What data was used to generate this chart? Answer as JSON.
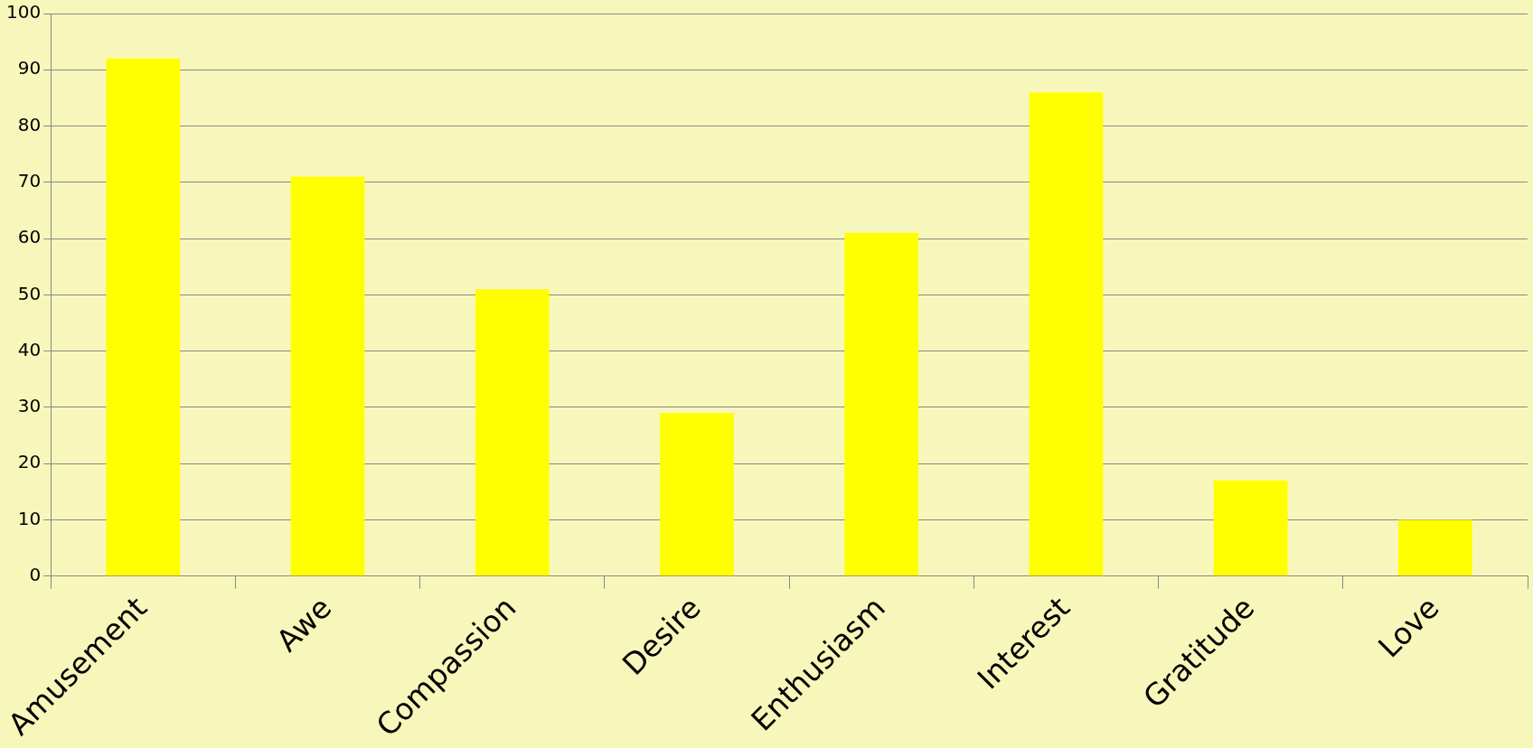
{
  "chart_data": {
    "type": "bar",
    "categories": [
      "Amusement",
      "Awe",
      "Compassion",
      "Desire",
      "Enthusiasm",
      "Interest",
      "Gratitude",
      "Love"
    ],
    "values": [
      92,
      71,
      51,
      29,
      61,
      86,
      17,
      10
    ],
    "color": "#ffff00",
    "ylim": [
      0,
      100
    ],
    "yticks": [
      0,
      10,
      20,
      30,
      40,
      50,
      60,
      70,
      80,
      90,
      100
    ],
    "grid": "y",
    "legend": false
  }
}
